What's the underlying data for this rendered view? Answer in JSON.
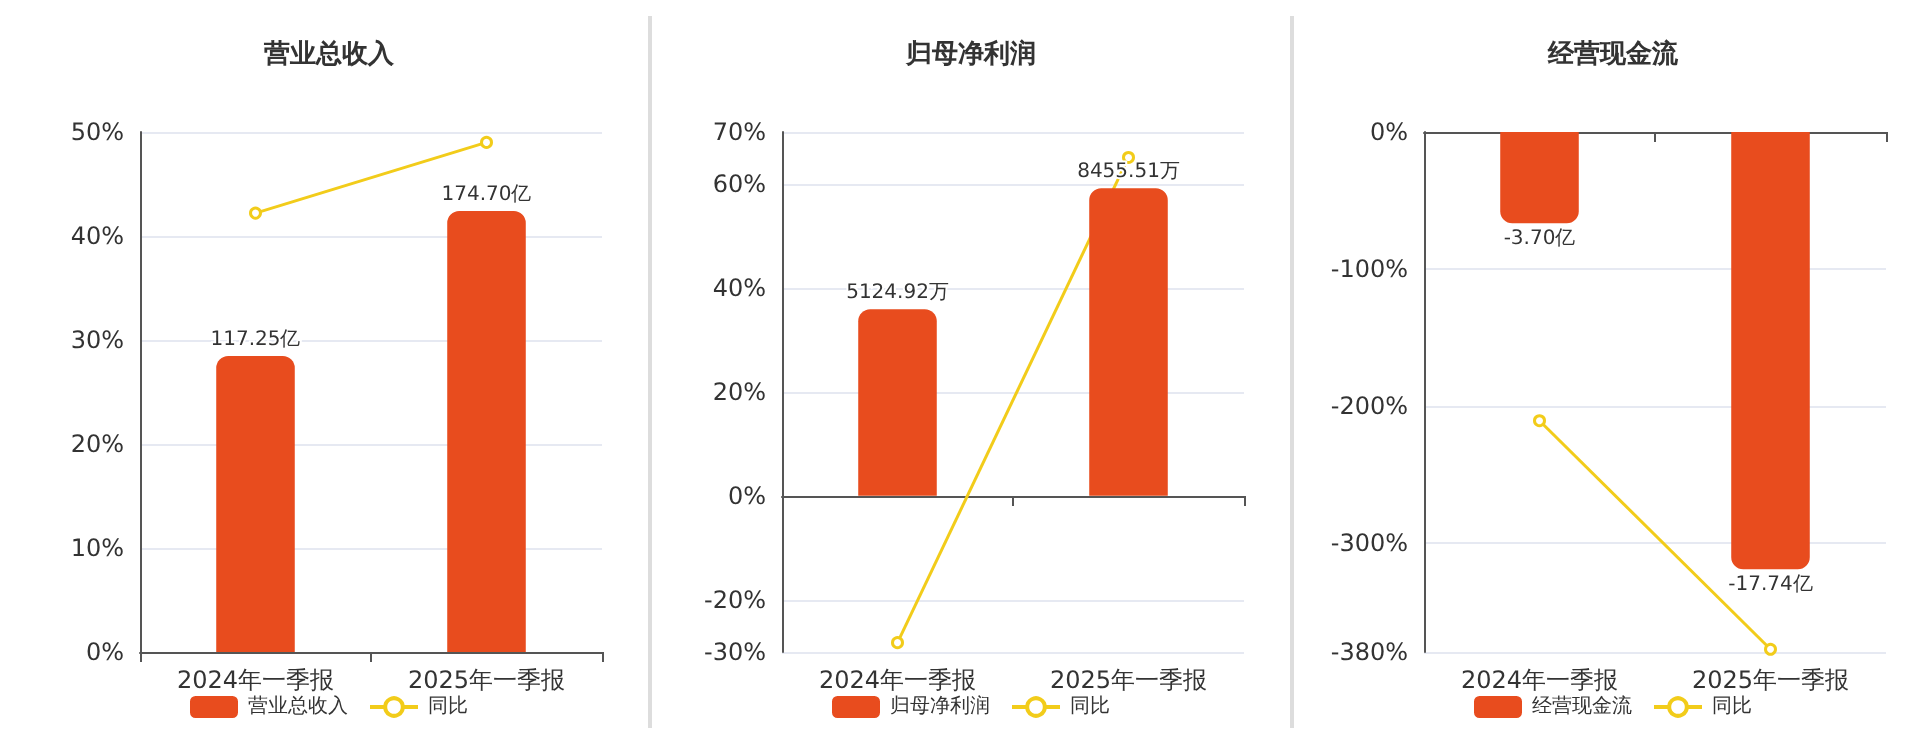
{
  "chart_data": [
    {
      "type": "bar",
      "title": "营业总收入",
      "categories": [
        "2024年一季报",
        "2025年一季报"
      ],
      "ylim": [
        0,
        50
      ],
      "yticks": [
        {
          "value": 0,
          "label": "0%"
        },
        {
          "value": 10,
          "label": "10%"
        },
        {
          "value": 20,
          "label": "20%"
        },
        {
          "value": 30,
          "label": "30%"
        },
        {
          "value": 40,
          "label": "40%"
        },
        {
          "value": 50,
          "label": "50%"
        }
      ],
      "y2lim": [
        0,
        206
      ],
      "grid": "y",
      "legend": "bottom",
      "marker": "circle",
      "series": [
        {
          "name": "营业总收入",
          "axis": "y2",
          "color": "#e84c1e",
          "values": [
            117.25,
            174.7
          ],
          "value_labels": [
            "117.25亿",
            "174.70亿"
          ]
        },
        {
          "name": "同比",
          "type": "line",
          "color": "#f2cc1a",
          "values": [
            42.2,
            49.0
          ]
        }
      ]
    },
    {
      "type": "bar",
      "title": "归母净利润",
      "categories": [
        "2024年一季报",
        "2025年一季报"
      ],
      "ylim": [
        -30,
        70
      ],
      "yticks": [
        {
          "value": -30,
          "label": "-30%"
        },
        {
          "value": -20,
          "label": "-20%"
        },
        {
          "value": 0,
          "label": "0%"
        },
        {
          "value": 20,
          "label": "20%"
        },
        {
          "value": 40,
          "label": "40%"
        },
        {
          "value": 60,
          "label": "60%"
        },
        {
          "value": 70,
          "label": "70%"
        }
      ],
      "y2lim": [
        -4300,
        10000
      ],
      "grid": "y",
      "legend": "bottom",
      "marker": "circle",
      "series": [
        {
          "name": "归母净利润",
          "axis": "y2",
          "color": "#e84c1e",
          "values": [
            5124.92,
            8455.51
          ],
          "value_labels": [
            "5124.92万",
            "8455.51万"
          ]
        },
        {
          "name": "同比",
          "type": "line",
          "color": "#f2cc1a",
          "values": [
            -28.2,
            65.1
          ]
        }
      ]
    },
    {
      "type": "bar",
      "title": "经营现金流",
      "categories": [
        "2024年一季报",
        "2025年一季报"
      ],
      "ylim": [
        -380,
        0
      ],
      "yticks": [
        {
          "value": -380,
          "label": "-380%"
        },
        {
          "value": -300,
          "label": "-300%"
        },
        {
          "value": -200,
          "label": "-200%"
        },
        {
          "value": -100,
          "label": "-100%"
        },
        {
          "value": 0,
          "label": "0%"
        }
      ],
      "y2lim": [
        -21.1,
        0
      ],
      "grid": "y",
      "legend": "bottom",
      "marker": "circle",
      "series": [
        {
          "name": "经营现金流",
          "axis": "y2",
          "color": "#e84c1e",
          "values": [
            -3.7,
            -17.74
          ],
          "value_labels": [
            "-3.70亿",
            "-17.74亿"
          ]
        },
        {
          "name": "同比",
          "type": "line",
          "color": "#f2cc1a",
          "values": [
            -211,
            -378
          ]
        }
      ]
    }
  ]
}
